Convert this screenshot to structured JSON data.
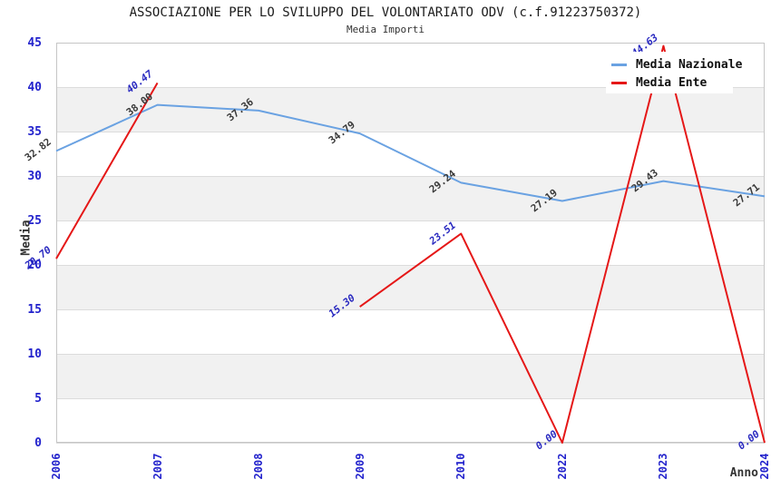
{
  "chart_data": {
    "type": "line",
    "title": "ASSOCIAZIONE PER LO SVILUPPO DEL VOLONTARIATO ODV (c.f.91223750372)",
    "subtitle": "Media Importi",
    "xlabel": "Anno",
    "ylabel": "Media",
    "categories": [
      "2006",
      "2007",
      "2008",
      "2009",
      "2010",
      "2022",
      "2023",
      "2024"
    ],
    "series": [
      {
        "name": "Media Nazionale",
        "line_color": "#6aa2e2",
        "label_color": "#3a3a3a",
        "italic_labels": false,
        "values": [
          32.82,
          38.0,
          37.36,
          34.79,
          29.24,
          27.19,
          29.43,
          27.71
        ]
      },
      {
        "name": "Media Ente",
        "line_color": "#e51717",
        "label_color": "#2929c0",
        "italic_labels": true,
        "values": [
          20.7,
          40.47,
          null,
          15.3,
          23.51,
          0.0,
          44.63,
          0.0
        ]
      }
    ],
    "ylim": [
      0,
      45
    ],
    "ytick_step": 5,
    "yticks": [
      0,
      5,
      10,
      15,
      20,
      25,
      30,
      35,
      40,
      45
    ],
    "legend_position": "top-right",
    "grid": "horizontal",
    "background": "alternating-gray-bands",
    "tick_label_color": "#2222cc",
    "band_color": "#f1f1f1",
    "gridline_color": "#dcdcdc",
    "border_color": "#c6c6c6"
  }
}
